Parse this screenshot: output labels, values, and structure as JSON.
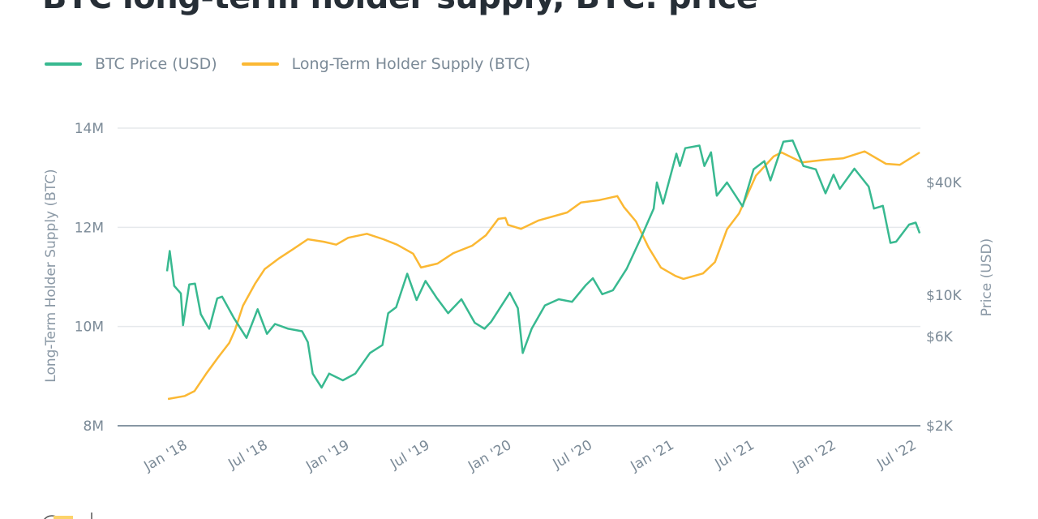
{
  "title": "BTC long-term holder supply, BTC: price",
  "colors": {
    "price": "#38b990",
    "supply": "#fbb833",
    "grid": "#e6e9ec",
    "baseline": "#8796a3"
  },
  "legend": [
    {
      "label": "BTC Price (USD)",
      "color": "#38b990"
    },
    {
      "label": "Long-Term Holder Supply (BTC)",
      "color": "#fbb833"
    }
  ],
  "chart_data": {
    "type": "line",
    "grid": true,
    "legend_position": "top-left",
    "y_left": {
      "label": "Long-Term Holder Supply (BTC)",
      "range": [
        8000000,
        14000000
      ],
      "ticks": [
        {
          "value": 8000000,
          "label": "8M"
        },
        {
          "value": 10000000,
          "label": "10M"
        },
        {
          "value": 12000000,
          "label": "12M"
        },
        {
          "value": 14000000,
          "label": "14M"
        }
      ]
    },
    "y_right": {
      "label": "Price (USD)",
      "scale": "log",
      "range": [
        2000,
        80000
      ],
      "ticks": [
        {
          "value": 2000,
          "label": "$2K"
        },
        {
          "value": 6000,
          "label": "$6K"
        },
        {
          "value": 10000,
          "label": "$10K"
        },
        {
          "value": 40000,
          "label": "$40K"
        }
      ]
    },
    "x_axis": {
      "type": "date",
      "range": [
        "2017-12-30",
        "2022-08-23"
      ],
      "ticks": [
        {
          "date": "2018-01-01",
          "label": "Jan '18"
        },
        {
          "date": "2018-07-01",
          "label": "Jul '18"
        },
        {
          "date": "2019-01-01",
          "label": "Jan '19"
        },
        {
          "date": "2019-07-01",
          "label": "Jul '19"
        },
        {
          "date": "2020-01-01",
          "label": "Jan '20"
        },
        {
          "date": "2020-07-01",
          "label": "Jul '20"
        },
        {
          "date": "2021-01-01",
          "label": "Jan '21"
        },
        {
          "date": "2021-07-01",
          "label": "Jul '21"
        },
        {
          "date": "2022-01-01",
          "label": "Jan '22"
        },
        {
          "date": "2022-07-01",
          "label": "Jul '22"
        }
      ]
    },
    "series": [
      {
        "name": "BTC Price (USD)",
        "axis": "right",
        "points": [
          [
            "2018-01-01",
            13400
          ],
          [
            "2018-01-07",
            17200
          ],
          [
            "2018-01-17",
            11200
          ],
          [
            "2018-02-01",
            10200
          ],
          [
            "2018-02-06",
            6900
          ],
          [
            "2018-02-20",
            11400
          ],
          [
            "2018-03-05",
            11500
          ],
          [
            "2018-03-18",
            7900
          ],
          [
            "2018-04-01",
            6900
          ],
          [
            "2018-04-06",
            6600
          ],
          [
            "2018-04-24",
            9600
          ],
          [
            "2018-05-05",
            9800
          ],
          [
            "2018-06-01",
            7500
          ],
          [
            "2018-06-29",
            5900
          ],
          [
            "2018-07-24",
            8400
          ],
          [
            "2018-08-14",
            6200
          ],
          [
            "2018-09-01",
            7000
          ],
          [
            "2018-10-01",
            6600
          ],
          [
            "2018-11-01",
            6400
          ],
          [
            "2018-11-14",
            5600
          ],
          [
            "2018-11-25",
            3800
          ],
          [
            "2018-12-15",
            3200
          ],
          [
            "2019-01-01",
            3800
          ],
          [
            "2019-02-01",
            3500
          ],
          [
            "2019-03-01",
            3800
          ],
          [
            "2019-04-03",
            4900
          ],
          [
            "2019-05-01",
            5400
          ],
          [
            "2019-05-14",
            8000
          ],
          [
            "2019-06-01",
            8600
          ],
          [
            "2019-06-26",
            13000
          ],
          [
            "2019-07-17",
            9400
          ],
          [
            "2019-08-06",
            11900
          ],
          [
            "2019-09-01",
            9600
          ],
          [
            "2019-09-26",
            8000
          ],
          [
            "2019-10-26",
            9500
          ],
          [
            "2019-11-25",
            7100
          ],
          [
            "2019-12-17",
            6600
          ],
          [
            "2020-01-01",
            7200
          ],
          [
            "2020-02-12",
            10300
          ],
          [
            "2020-03-01",
            8500
          ],
          [
            "2020-03-12",
            4900
          ],
          [
            "2020-04-01",
            6600
          ],
          [
            "2020-05-01",
            8800
          ],
          [
            "2020-06-01",
            9500
          ],
          [
            "2020-07-01",
            9200
          ],
          [
            "2020-08-01",
            11300
          ],
          [
            "2020-08-17",
            12300
          ],
          [
            "2020-09-07",
            10100
          ],
          [
            "2020-10-01",
            10600
          ],
          [
            "2020-11-01",
            13800
          ],
          [
            "2020-12-01",
            19700
          ],
          [
            "2021-01-01",
            29000
          ],
          [
            "2021-01-08",
            40000
          ],
          [
            "2021-01-22",
            30800
          ],
          [
            "2021-02-21",
            57000
          ],
          [
            "2021-03-01",
            49000
          ],
          [
            "2021-03-13",
            61000
          ],
          [
            "2021-04-14",
            63000
          ],
          [
            "2021-04-25",
            49000
          ],
          [
            "2021-05-10",
            58000
          ],
          [
            "2021-05-23",
            34000
          ],
          [
            "2021-06-15",
            40000
          ],
          [
            "2021-07-20",
            29800
          ],
          [
            "2021-08-14",
            47000
          ],
          [
            "2021-09-07",
            52000
          ],
          [
            "2021-09-21",
            41000
          ],
          [
            "2021-10-20",
            66000
          ],
          [
            "2021-11-10",
            67000
          ],
          [
            "2021-12-04",
            49000
          ],
          [
            "2022-01-01",
            47000
          ],
          [
            "2022-01-23",
            35000
          ],
          [
            "2022-02-10",
            44000
          ],
          [
            "2022-02-24",
            37000
          ],
          [
            "2022-03-29",
            47400
          ],
          [
            "2022-04-30",
            38000
          ],
          [
            "2022-05-12",
            29000
          ],
          [
            "2022-06-01",
            30000
          ],
          [
            "2022-06-18",
            19000
          ],
          [
            "2022-07-01",
            19300
          ],
          [
            "2022-07-30",
            23800
          ],
          [
            "2022-08-14",
            24400
          ],
          [
            "2022-08-23",
            21400
          ]
        ]
      },
      {
        "name": "Long-Term Holder Supply (BTC)",
        "axis": "left",
        "points": [
          [
            "2018-01-03",
            8540000
          ],
          [
            "2018-02-10",
            8600000
          ],
          [
            "2018-03-04",
            8700000
          ],
          [
            "2018-03-31",
            9060000
          ],
          [
            "2018-04-27",
            9390000
          ],
          [
            "2018-05-21",
            9670000
          ],
          [
            "2018-06-03",
            9930000
          ],
          [
            "2018-06-21",
            10420000
          ],
          [
            "2018-07-18",
            10860000
          ],
          [
            "2018-08-09",
            11160000
          ],
          [
            "2018-09-11",
            11380000
          ],
          [
            "2018-10-12",
            11560000
          ],
          [
            "2018-11-14",
            11760000
          ],
          [
            "2018-12-20",
            11710000
          ],
          [
            "2019-01-17",
            11650000
          ],
          [
            "2019-02-13",
            11790000
          ],
          [
            "2019-03-27",
            11870000
          ],
          [
            "2019-05-03",
            11760000
          ],
          [
            "2019-06-03",
            11650000
          ],
          [
            "2019-07-09",
            11470000
          ],
          [
            "2019-07-27",
            11190000
          ],
          [
            "2019-09-02",
            11270000
          ],
          [
            "2019-10-08",
            11480000
          ],
          [
            "2019-11-19",
            11630000
          ],
          [
            "2019-12-20",
            11840000
          ],
          [
            "2020-01-17",
            12170000
          ],
          [
            "2020-02-02",
            12190000
          ],
          [
            "2020-02-08",
            12050000
          ],
          [
            "2020-03-08",
            11970000
          ],
          [
            "2020-04-17",
            12140000
          ],
          [
            "2020-06-20",
            12300000
          ],
          [
            "2020-07-21",
            12500000
          ],
          [
            "2020-09-01",
            12550000
          ],
          [
            "2020-10-11",
            12630000
          ],
          [
            "2020-10-26",
            12410000
          ],
          [
            "2020-11-22",
            12120000
          ],
          [
            "2020-12-20",
            11600000
          ],
          [
            "2021-01-17",
            11190000
          ],
          [
            "2021-02-19",
            11020000
          ],
          [
            "2021-03-09",
            10960000
          ],
          [
            "2021-04-22",
            11070000
          ],
          [
            "2021-05-19",
            11300000
          ],
          [
            "2021-06-15",
            11960000
          ],
          [
            "2021-07-12",
            12280000
          ],
          [
            "2021-08-19",
            13040000
          ],
          [
            "2021-09-28",
            13430000
          ],
          [
            "2021-10-16",
            13510000
          ],
          [
            "2021-12-01",
            13310000
          ],
          [
            "2022-01-20",
            13360000
          ],
          [
            "2022-03-03",
            13390000
          ],
          [
            "2022-04-21",
            13530000
          ],
          [
            "2022-06-08",
            13280000
          ],
          [
            "2022-07-09",
            13260000
          ],
          [
            "2022-08-23",
            13510000
          ]
        ]
      }
    ]
  }
}
